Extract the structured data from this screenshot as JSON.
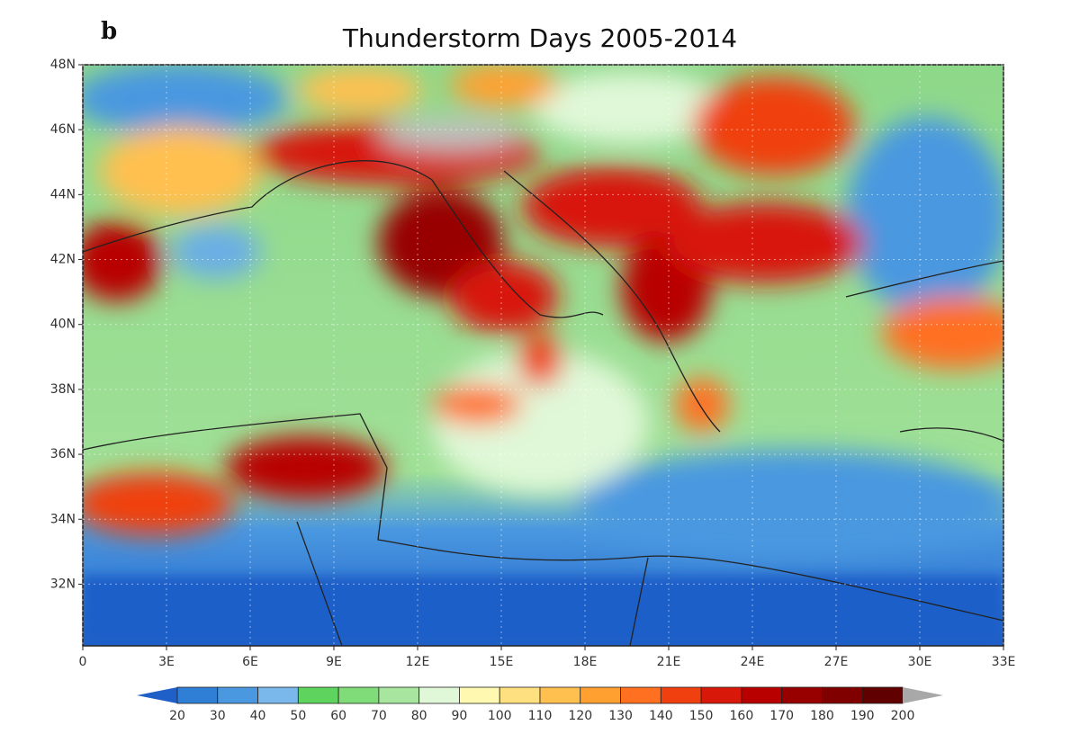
{
  "panel_label": "b",
  "title": "Thunderstorm Days 2005-2014",
  "map": {
    "lonlim": [
      0,
      33
    ],
    "latlim": [
      30.1,
      48
    ],
    "lat_ticks": [
      {
        "value": 48,
        "label": "48N"
      },
      {
        "value": 46,
        "label": "46N"
      },
      {
        "value": 44,
        "label": "44N"
      },
      {
        "value": 42,
        "label": "42N"
      },
      {
        "value": 40,
        "label": "40N"
      },
      {
        "value": 38,
        "label": "38N"
      },
      {
        "value": 36,
        "label": "36N"
      },
      {
        "value": 34,
        "label": "34N"
      },
      {
        "value": 32,
        "label": "32N"
      }
    ],
    "lon_ticks": [
      0,
      {
        "value": 3,
        "label": "3E"
      },
      {
        "value": 6,
        "label": "6E"
      },
      {
        "value": 9,
        "label": "9E"
      },
      {
        "value": 12,
        "label": "12E"
      },
      {
        "value": 15,
        "label": "15E"
      },
      {
        "value": 18,
        "label": "18E"
      },
      {
        "value": 21,
        "label": "21E"
      },
      {
        "value": 24,
        "label": "24E"
      },
      {
        "value": 27,
        "label": "27E"
      },
      {
        "value": 30,
        "label": "30E"
      },
      {
        "value": 33,
        "label": "33E"
      }
    ]
  },
  "colorbar": {
    "levels": [
      20,
      30,
      40,
      50,
      60,
      70,
      80,
      90,
      100,
      110,
      120,
      130,
      140,
      150,
      160,
      170,
      180,
      190,
      200
    ],
    "colors": [
      "#1f5fc8",
      "#2f7fd6",
      "#4a98e0",
      "#7ab8ec",
      "#5ed45e",
      "#80dc78",
      "#a8e6a0",
      "#e0f8d8",
      "#fff8b0",
      "#ffe080",
      "#ffc050",
      "#ffa030",
      "#ff7020",
      "#f04010",
      "#d81808",
      "#b80000",
      "#980000",
      "#800000",
      "#600000",
      "#a8a8a8"
    ]
  }
}
